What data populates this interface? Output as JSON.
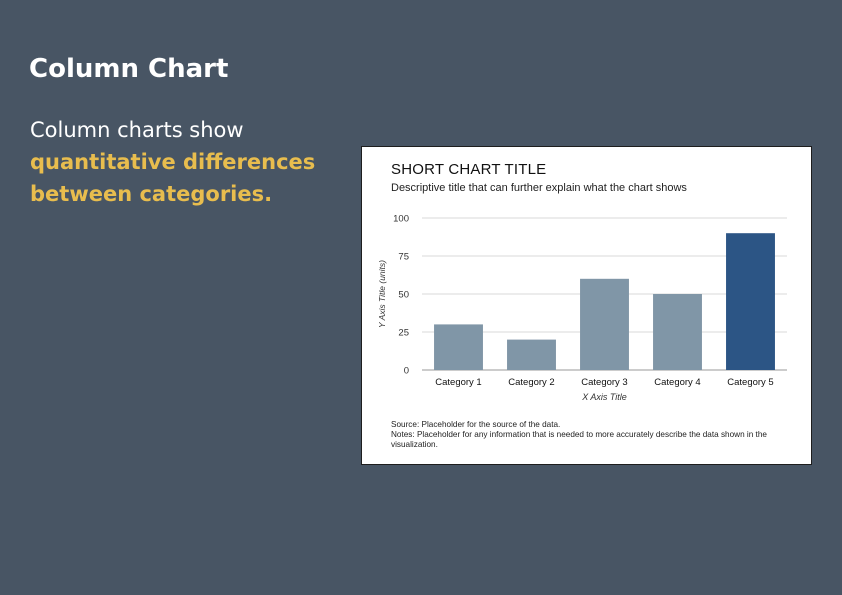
{
  "slide": {
    "title": "Column Chart",
    "intro": "Column charts show",
    "emphasis": "quantitative differences between categories."
  },
  "colors": {
    "background": "#485564",
    "emphasis": "#e8bd4e",
    "bar_default": "#8096a7",
    "bar_highlight": "#2c5585"
  },
  "chart_data": {
    "type": "bar",
    "title": "SHORT CHART TITLE",
    "subtitle": "Descriptive title that can further explain what the chart shows",
    "xlabel": "X Axis Title",
    "ylabel": "Y Axis Title (units)",
    "categories": [
      "Category 1",
      "Category 2",
      "Category 3",
      "Category 4",
      "Category 5"
    ],
    "values": [
      30,
      20,
      60,
      50,
      90
    ],
    "highlight_index": 4,
    "ylim": [
      0,
      100
    ],
    "yticks": [
      0,
      25,
      50,
      75,
      100
    ],
    "grid": true,
    "source": "Source: Placeholder for the source of the data.",
    "notes": "Notes: Placeholder for any information that is needed to more accurately describe the data shown in the visualization."
  }
}
